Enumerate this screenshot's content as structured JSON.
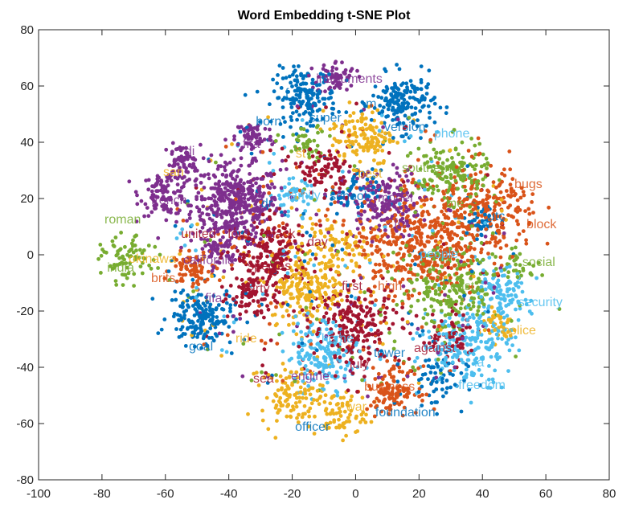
{
  "chart_data": {
    "type": "scatter",
    "title": "Word Embedding t-SNE Plot",
    "xlabel": "",
    "ylabel": "",
    "xlim": [
      -100,
      80
    ],
    "ylim": [
      -80,
      80
    ],
    "xticks": [
      -100,
      -80,
      -60,
      -40,
      -20,
      0,
      20,
      40,
      60,
      80
    ],
    "yticks": [
      -80,
      -60,
      -40,
      -20,
      0,
      20,
      40,
      60,
      80
    ],
    "grid": false,
    "colors": {
      "blue": "#0072BD",
      "orange": "#D95319",
      "yellow": "#EDB120",
      "purple": "#7E2F8E",
      "green": "#77AC30",
      "lightblue": "#4DBEEE",
      "darkred": "#A2142F"
    },
    "clusters": [
      {
        "color": "purple",
        "cx": -38,
        "cy": 18,
        "sd": 7,
        "n": 420
      },
      {
        "color": "purple",
        "cx": -60,
        "cy": 22,
        "sd": 4,
        "n": 110
      },
      {
        "color": "purple",
        "cx": -55,
        "cy": 33,
        "sd": 3,
        "n": 60
      },
      {
        "color": "purple",
        "cx": -32,
        "cy": 42,
        "sd": 3,
        "n": 70
      },
      {
        "color": "purple",
        "cx": -6,
        "cy": 63,
        "sd": 3,
        "n": 60
      },
      {
        "color": "purple",
        "cx": 8,
        "cy": 18,
        "sd": 6,
        "n": 170
      },
      {
        "color": "purple",
        "cx": -43,
        "cy": 2,
        "sd": 3,
        "n": 60
      },
      {
        "color": "blue",
        "cx": -16,
        "cy": 56,
        "sd": 5,
        "n": 170
      },
      {
        "color": "blue",
        "cx": 15,
        "cy": 54,
        "sd": 5,
        "n": 170
      },
      {
        "color": "blue",
        "cx": -49,
        "cy": -22,
        "sd": 5,
        "n": 170
      },
      {
        "color": "blue",
        "cx": 25,
        "cy": -45,
        "sd": 5,
        "n": 60
      },
      {
        "color": "blue",
        "cx": 0,
        "cy": 22,
        "sd": 4,
        "n": 60
      },
      {
        "color": "blue",
        "cx": 40,
        "cy": 12,
        "sd": 3,
        "n": 40
      },
      {
        "color": "yellow",
        "cx": 2,
        "cy": 42,
        "sd": 5,
        "n": 130
      },
      {
        "color": "yellow",
        "cx": -15,
        "cy": -12,
        "sd": 6,
        "n": 170
      },
      {
        "color": "yellow",
        "cx": -20,
        "cy": -50,
        "sd": 5,
        "n": 110
      },
      {
        "color": "yellow",
        "cx": -5,
        "cy": -57,
        "sd": 4,
        "n": 70
      },
      {
        "color": "yellow",
        "cx": -8,
        "cy": 2,
        "sd": 6,
        "n": 110
      },
      {
        "color": "yellow",
        "cx": 45,
        "cy": -25,
        "sd": 3,
        "n": 40
      },
      {
        "color": "orange",
        "cx": 20,
        "cy": 5,
        "sd": 10,
        "n": 450
      },
      {
        "color": "orange",
        "cx": 42,
        "cy": 15,
        "sd": 8,
        "n": 220
      },
      {
        "color": "orange",
        "cx": -52,
        "cy": -5,
        "sd": 3,
        "n": 70
      },
      {
        "color": "orange",
        "cx": 12,
        "cy": -48,
        "sd": 4,
        "n": 120
      },
      {
        "color": "orange",
        "cx": -30,
        "cy": 5,
        "sd": 10,
        "n": 40
      },
      {
        "color": "green",
        "cx": 30,
        "cy": -12,
        "sd": 8,
        "n": 220
      },
      {
        "color": "green",
        "cx": 30,
        "cy": 28,
        "sd": 6,
        "n": 160
      },
      {
        "color": "green",
        "cx": -72,
        "cy": -2,
        "sd": 4,
        "n": 80
      },
      {
        "color": "green",
        "cx": -15,
        "cy": 40,
        "sd": 3,
        "n": 40
      },
      {
        "color": "green",
        "cx": 52,
        "cy": -3,
        "sd": 3,
        "n": 30
      },
      {
        "color": "lightblue",
        "cx": -10,
        "cy": -35,
        "sd": 6,
        "n": 170
      },
      {
        "color": "lightblue",
        "cx": 35,
        "cy": -32,
        "sd": 7,
        "n": 200
      },
      {
        "color": "lightblue",
        "cx": 45,
        "cy": -15,
        "sd": 5,
        "n": 120
      },
      {
        "color": "lightblue",
        "cx": -20,
        "cy": 21,
        "sd": 3,
        "n": 40
      },
      {
        "color": "darkred",
        "cx": 0,
        "cy": -25,
        "sd": 7,
        "n": 220
      },
      {
        "color": "darkred",
        "cx": -26,
        "cy": 0,
        "sd": 6,
        "n": 160
      },
      {
        "color": "darkred",
        "cx": -10,
        "cy": 30,
        "sd": 4,
        "n": 90
      },
      {
        "color": "darkred",
        "cx": -32,
        "cy": -14,
        "sd": 4,
        "n": 90
      },
      {
        "color": "darkred",
        "cx": 30,
        "cy": -30,
        "sd": 5,
        "n": 60
      }
    ],
    "labels": [
      {
        "text": "instruments",
        "x": -12.5,
        "y": 62.9,
        "color": "purple"
      },
      {
        "text": "f",
        "x": -22.2,
        "y": 57.7,
        "color": "blue"
      },
      {
        "text": "m",
        "x": 3.2,
        "y": 54,
        "color": "blue"
      },
      {
        "text": "super",
        "x": -14.6,
        "y": 49,
        "color": "blue"
      },
      {
        "text": "born",
        "x": -31.5,
        "y": 47.7,
        "color": "blue"
      },
      {
        "text": "version",
        "x": 9,
        "y": 45.7,
        "color": "blue"
      },
      {
        "text": "phone",
        "x": 24.7,
        "y": 43.4,
        "color": "lightblue"
      },
      {
        "text": "fifa",
        "x": -35.6,
        "y": 39.7,
        "color": "purple"
      },
      {
        "text": "di",
        "x": -53.9,
        "y": 37.1,
        "color": "purple"
      },
      {
        "text": "st",
        "x": -18.9,
        "y": 36.3,
        "color": "yellow"
      },
      {
        "text": "san",
        "x": -60.7,
        "y": 29.7,
        "color": "yellow"
      },
      {
        "text": "best",
        "x": 0.7,
        "y": 29.1,
        "color": "yellow"
      },
      {
        "text": "southern",
        "x": 14.6,
        "y": 31.1,
        "color": "green"
      },
      {
        "text": "bugs",
        "x": 50.1,
        "y": 25.4,
        "color": "orange"
      },
      {
        "text": "french",
        "x": -64.5,
        "y": 19.7,
        "color": "purple"
      },
      {
        "text": "family",
        "x": -21.7,
        "y": 21.4,
        "color": "lightblue"
      },
      {
        "text": "school",
        "x": -8.2,
        "y": 21.1,
        "color": "blue"
      },
      {
        "text": "model",
        "x": 7,
        "y": 20.6,
        "color": "purple"
      },
      {
        "text": "dr",
        "x": -29.8,
        "y": 18.6,
        "color": "blue"
      },
      {
        "text": "me",
        "x": 28.5,
        "y": 18.6,
        "color": "green"
      },
      {
        "text": "roman",
        "x": -79.2,
        "y": 12.9,
        "color": "green"
      },
      {
        "text": "utc",
        "x": 41.7,
        "y": 14,
        "color": "blue"
      },
      {
        "text": "block",
        "x": 53.9,
        "y": 11.1,
        "color": "orange"
      },
      {
        "text": "for",
        "x": 12.1,
        "y": 11.4,
        "color": "purple"
      },
      {
        "text": "united",
        "x": -55.1,
        "y": 7.7,
        "color": "darkred"
      },
      {
        "text": "ford",
        "x": -40.4,
        "y": 7.7,
        "color": "darkred"
      },
      {
        "text": "black",
        "x": -28.5,
        "y": 7.7,
        "color": "darkred"
      },
      {
        "text": "day",
        "x": -15.3,
        "y": 4.9,
        "color": "darkred"
      },
      {
        "text": "okinawa",
        "x": -71.6,
        "y": -1.1,
        "color": "yellow"
      },
      {
        "text": "california",
        "x": -54.4,
        "y": -1.6,
        "color": "purple"
      },
      {
        "text": "people",
        "x": 20.2,
        "y": 0.6,
        "color": "lightblue"
      },
      {
        "text": "social",
        "x": 52.6,
        "y": -2.3,
        "color": "green"
      },
      {
        "text": "india",
        "x": -78.4,
        "y": -4.3,
        "color": "green"
      },
      {
        "text": "species",
        "x": -34.1,
        "y": -3.7,
        "color": "darkred"
      },
      {
        "text": "brits",
        "x": -64.5,
        "y": -8,
        "color": "orange"
      },
      {
        "text": "party",
        "x": -36.1,
        "y": -11.7,
        "color": "darkred"
      },
      {
        "text": "first",
        "x": -4.4,
        "y": -10.9,
        "color": "darkred"
      },
      {
        "text": "high",
        "x": 7,
        "y": -10.9,
        "color": "orange"
      },
      {
        "text": "east",
        "x": 29.8,
        "y": -10.9,
        "color": "green"
      },
      {
        "text": "fifa",
        "x": -47.5,
        "y": -15.1,
        "color": "purple"
      },
      {
        "text": "security",
        "x": 51.3,
        "y": -16.6,
        "color": "lightblue"
      },
      {
        "text": "ride",
        "x": -37.9,
        "y": -29.4,
        "color": "yellow"
      },
      {
        "text": "police",
        "x": 46.3,
        "y": -26.6,
        "color": "yellow"
      },
      {
        "text": "home",
        "x": -10.8,
        "y": -29.4,
        "color": "lightblue"
      },
      {
        "text": "goal",
        "x": -52.6,
        "y": -32.3,
        "color": "blue"
      },
      {
        "text": "against",
        "x": 18.4,
        "y": -32.9,
        "color": "darkred"
      },
      {
        "text": "tower",
        "x": 5.7,
        "y": -34.6,
        "color": "blue"
      },
      {
        "text": "july",
        "x": -1.9,
        "y": -38.6,
        "color": "darkred"
      },
      {
        "text": "la",
        "x": 37.4,
        "y": -38,
        "color": "lightblue"
      },
      {
        "text": "engine",
        "x": -20.4,
        "y": -42.9,
        "color": "purple"
      },
      {
        "text": "sea",
        "x": -32.3,
        "y": -43.7,
        "color": "darkred"
      },
      {
        "text": "business",
        "x": 2.7,
        "y": -46.6,
        "color": "orange"
      },
      {
        "text": "freedom",
        "x": 32.4,
        "y": -46,
        "color": "lightblue"
      },
      {
        "text": "war",
        "x": -3.1,
        "y": -53.7,
        "color": "yellow"
      },
      {
        "text": "foundation",
        "x": 6.2,
        "y": -55.7,
        "color": "blue"
      },
      {
        "text": "officer",
        "x": -19.1,
        "y": -60.9,
        "color": "blue"
      }
    ]
  }
}
